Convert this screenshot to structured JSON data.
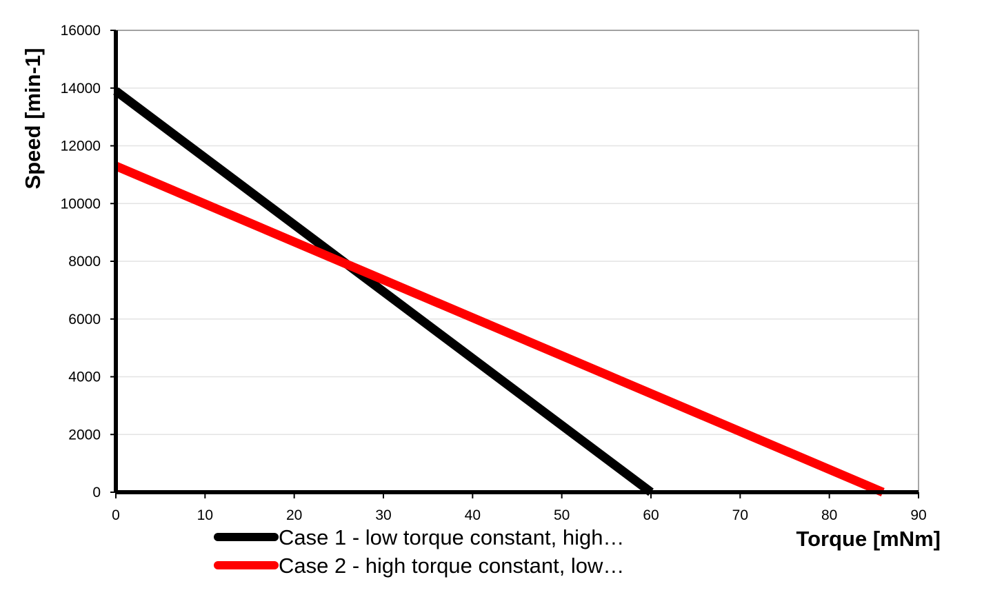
{
  "chart_data": {
    "type": "line",
    "title": "",
    "xlabel": "Torque [mNm]",
    "ylabel": "Speed [min-1]",
    "xlim": [
      0,
      90
    ],
    "ylim": [
      0,
      16000
    ],
    "x_ticks": [
      0,
      10,
      20,
      30,
      40,
      50,
      60,
      70,
      80,
      90
    ],
    "y_ticks": [
      0,
      2000,
      4000,
      6000,
      8000,
      10000,
      12000,
      14000,
      16000
    ],
    "grid": "horizontal",
    "legend_position": "bottom-left",
    "series": [
      {
        "name": "Case 1 - low torque constant, high…",
        "color": "#000000",
        "x": [
          0,
          60
        ],
        "y": [
          13900,
          0
        ]
      },
      {
        "name": "Case 2 - high torque constant, low…",
        "color": "#ff0000",
        "x": [
          0,
          86
        ],
        "y": [
          11300,
          0
        ]
      }
    ]
  }
}
